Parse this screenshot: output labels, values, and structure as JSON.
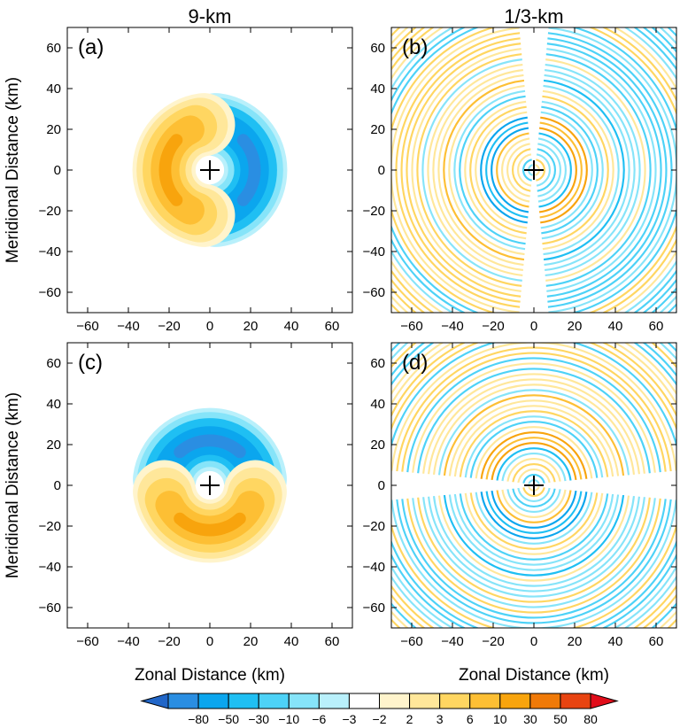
{
  "chart_data": {
    "type": "filled_contour_panels",
    "column_titles": [
      "9-km",
      "1/3-km"
    ],
    "xlabel": "Zonal Distance (km)",
    "ylabel": "Meridional Distance (km)",
    "xlim": [
      -70,
      70
    ],
    "ylim": [
      -70,
      70
    ],
    "xticks": [
      -60,
      -40,
      -20,
      0,
      20,
      40,
      60
    ],
    "yticks": [
      -60,
      -40,
      -20,
      0,
      20,
      40,
      60
    ],
    "xtick_labels": [
      "−60",
      "−40",
      "−20",
      "0",
      "20",
      "40",
      "60"
    ],
    "ytick_labels": [
      "−60",
      "−40",
      "−20",
      "0",
      "20",
      "40",
      "60"
    ],
    "panels": [
      {
        "label": "(a)",
        "resolution": "9-km",
        "pattern": "dipole",
        "orientation": "zonal",
        "center": [
          0,
          0
        ],
        "positive_lobe": "west",
        "negative_lobe": "east",
        "peak_radius_km": 22,
        "max_level": 10,
        "min_level": -10
      },
      {
        "label": "(b)",
        "resolution": "1/3-km",
        "pattern": "rings",
        "orientation": "zonal",
        "center": [
          0,
          0
        ],
        "positive_side": "west",
        "negative_side": "east",
        "ring_spacing_km": 2.6,
        "outer_radius_km": 70
      },
      {
        "label": "(c)",
        "resolution": "9-km",
        "pattern": "dipole",
        "orientation": "meridional",
        "center": [
          0,
          0
        ],
        "positive_lobe": "south",
        "negative_lobe": "north",
        "peak_radius_km": 22,
        "max_level": 10,
        "min_level": -10
      },
      {
        "label": "(d)",
        "resolution": "1/3-km",
        "pattern": "rings",
        "orientation": "meridional",
        "center": [
          0,
          0
        ],
        "positive_side": "south",
        "negative_side": "north",
        "ring_spacing_km": 2.6,
        "outer_radius_km": 70
      }
    ],
    "colorbar": {
      "ticks": [
        "−80",
        "−50",
        "−30",
        "−10",
        "−6",
        "−3",
        "−2",
        "2",
        "3",
        "6",
        "10",
        "30",
        "50",
        "80"
      ],
      "colors": [
        "#2166c8",
        "#2a8ee2",
        "#0ba6ee",
        "#1fbff3",
        "#4dd2f7",
        "#86e4f9",
        "#b9f0fb",
        "#ffffff",
        "#fff4cc",
        "#ffe79a",
        "#ffd661",
        "#fdbf34",
        "#f8a40d",
        "#f07a08",
        "#e84411",
        "#e10d1a"
      ]
    }
  }
}
